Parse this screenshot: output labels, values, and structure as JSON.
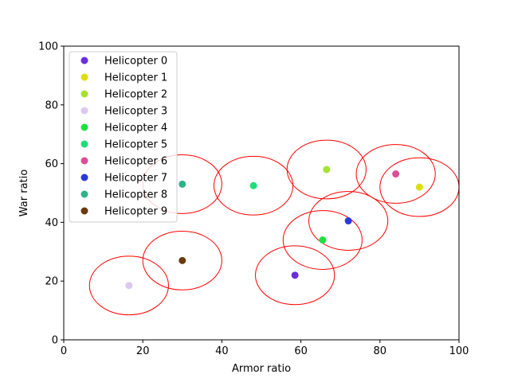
{
  "chart_data": {
    "type": "scatter",
    "title": "",
    "xlabel": "Armor ratio",
    "ylabel": "War ratio",
    "xlim": [
      0,
      100
    ],
    "ylim": [
      0,
      100
    ],
    "xticks": [
      "0",
      "20",
      "40",
      "60",
      "80",
      "100"
    ],
    "yticks": [
      "0",
      "20",
      "40",
      "60",
      "80",
      "100"
    ],
    "grid": false,
    "legend_position": "top-left",
    "circle_color": "#ff0000",
    "circle_radius": 10,
    "series": [
      {
        "name": "Helicopter 0",
        "color": "#6a2ee0",
        "x": 58.5,
        "y": 22
      },
      {
        "name": "Helicopter 1",
        "color": "#dddd11",
        "x": 90,
        "y": 52
      },
      {
        "name": "Helicopter 2",
        "color": "#a6e22e",
        "x": 66.5,
        "y": 58
      },
      {
        "name": "Helicopter 3",
        "color": "#dcc8f0",
        "x": 16.5,
        "y": 18.5
      },
      {
        "name": "Helicopter 4",
        "color": "#1ee040",
        "x": 65.5,
        "y": 34
      },
      {
        "name": "Helicopter 5",
        "color": "#22dd77",
        "x": 48,
        "y": 52.5
      },
      {
        "name": "Helicopter 6",
        "color": "#d94f94",
        "x": 84,
        "y": 56.5
      },
      {
        "name": "Helicopter 7",
        "color": "#2a3ad8",
        "x": 72,
        "y": 40.5
      },
      {
        "name": "Helicopter 8",
        "color": "#2fb38a",
        "x": 30,
        "y": 53
      },
      {
        "name": "Helicopter 9",
        "color": "#6b3a0c",
        "x": 30,
        "y": 27
      }
    ]
  }
}
